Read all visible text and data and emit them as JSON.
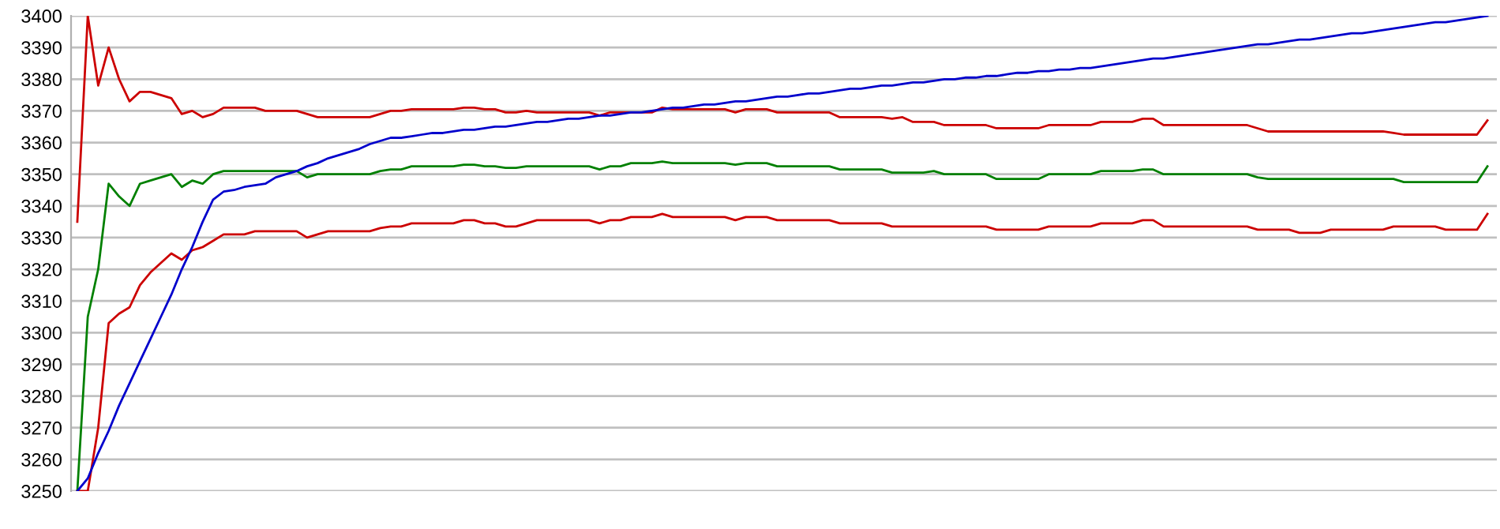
{
  "chart_data": {
    "type": "line",
    "categories": [
      null,
      null,
      null,
      null,
      null,
      null,
      null,
      null,
      null,
      null,
      null,
      null,
      null,
      null,
      null,
      null,
      null,
      null,
      null,
      null,
      null,
      null,
      null,
      null,
      null,
      null,
      null,
      null,
      null,
      null,
      null,
      null,
      null,
      null,
      null,
      null,
      null,
      null,
      null,
      null,
      null,
      null,
      null,
      null,
      null,
      null,
      null,
      null,
      null,
      null,
      null,
      null,
      null,
      null,
      null,
      null,
      null,
      null,
      null,
      null,
      null,
      null,
      null,
      null,
      null,
      null,
      null,
      null,
      null,
      null,
      null,
      null,
      null,
      null,
      null,
      null,
      null,
      null,
      null,
      null,
      null,
      null,
      null,
      null,
      null,
      null,
      null,
      null,
      null,
      null,
      null,
      null,
      null,
      null,
      null,
      null,
      null,
      null,
      null,
      null,
      null,
      null,
      null,
      null,
      null,
      null,
      null,
      null,
      null,
      null,
      null,
      null,
      null,
      null,
      null,
      null,
      null,
      null,
      null,
      null,
      null,
      null,
      null,
      null,
      null,
      null,
      null,
      null,
      null,
      null,
      null,
      null,
      null,
      null,
      null,
      null
    ],
    "series": [
      {
        "color": "#cc0000",
        "values": [
          3335,
          3400,
          3378,
          3390,
          3380,
          3373,
          3376,
          3376,
          3375,
          3374,
          3369,
          3370,
          3368,
          3369,
          3371,
          3371,
          3371,
          3371,
          3370,
          3370,
          3370,
          3370,
          3369,
          3368,
          3368,
          3368,
          3368,
          3368,
          3368,
          3369,
          3370,
          3370,
          3370.5,
          3370.5,
          3370.5,
          3370.5,
          3370.5,
          3371,
          3371,
          3370.5,
          3370.5,
          3369.5,
          3369.5,
          3370,
          3369.5,
          3369.5,
          3369.5,
          3369.5,
          3369.5,
          3369.5,
          3368.5,
          3369.5,
          3369.5,
          3369.5,
          3369.5,
          3369.5,
          3371,
          3370.5,
          3370.5,
          3370.5,
          3370.5,
          3370.5,
          3370.5,
          3369.5,
          3370.5,
          3370.5,
          3370.5,
          3369.5,
          3369.5,
          3369.5,
          3369.5,
          3369.5,
          3369.5,
          3368,
          3368,
          3368,
          3368,
          3368,
          3367.5,
          3368,
          3366.5,
          3366.5,
          3366.5,
          3365.5,
          3365.5,
          3365.5,
          3365.5,
          3365.5,
          3364.5,
          3364.5,
          3364.5,
          3364.5,
          3364.5,
          3365.5,
          3365.5,
          3365.5,
          3365.5,
          3365.5,
          3366.5,
          3366.5,
          3366.5,
          3366.5,
          3367.5,
          3367.5,
          3365.5,
          3365.5,
          3365.5,
          3365.5,
          3365.5,
          3365.5,
          3365.5,
          3365.5,
          3365.5,
          3364.5,
          3363.5,
          3363.5,
          3363.5,
          3363.5,
          3363.5,
          3363.5,
          3363.5,
          3363.5,
          3363.5,
          3363.5,
          3363.5,
          3363.5,
          3363,
          3362.5,
          3362.5,
          3362.5,
          3362.5,
          3362.5,
          3362.5,
          3362.5,
          3362.5,
          3367
        ]
      },
      {
        "color": "#008000",
        "values": [
          3250,
          3305,
          3320,
          3347,
          3343,
          3340,
          3347,
          3348,
          3349,
          3350,
          3346,
          3348,
          3347,
          3350,
          3351,
          3351,
          3351,
          3351,
          3351,
          3351,
          3351,
          3351,
          3349,
          3350,
          3350,
          3350,
          3350,
          3350,
          3350,
          3351,
          3351.5,
          3351.5,
          3352.5,
          3352.5,
          3352.5,
          3352.5,
          3352.5,
          3353,
          3353,
          3352.5,
          3352.5,
          3352,
          3352,
          3352.5,
          3352.5,
          3352.5,
          3352.5,
          3352.5,
          3352.5,
          3352.5,
          3351.5,
          3352.5,
          3352.5,
          3353.5,
          3353.5,
          3353.5,
          3354,
          3353.5,
          3353.5,
          3353.5,
          3353.5,
          3353.5,
          3353.5,
          3353,
          3353.5,
          3353.5,
          3353.5,
          3352.5,
          3352.5,
          3352.5,
          3352.5,
          3352.5,
          3352.5,
          3351.5,
          3351.5,
          3351.5,
          3351.5,
          3351.5,
          3350.5,
          3350.5,
          3350.5,
          3350.5,
          3351,
          3350,
          3350,
          3350,
          3350,
          3350,
          3348.5,
          3348.5,
          3348.5,
          3348.5,
          3348.5,
          3350,
          3350,
          3350,
          3350,
          3350,
          3351,
          3351,
          3351,
          3351,
          3351.5,
          3351.5,
          3350,
          3350,
          3350,
          3350,
          3350,
          3350,
          3350,
          3350,
          3350,
          3349,
          3348.5,
          3348.5,
          3348.5,
          3348.5,
          3348.5,
          3348.5,
          3348.5,
          3348.5,
          3348.5,
          3348.5,
          3348.5,
          3348.5,
          3348.5,
          3347.5,
          3347.5,
          3347.5,
          3347.5,
          3347.5,
          3347.5,
          3347.5,
          3347.5,
          3352.5
        ]
      },
      {
        "color": "#cc0000",
        "values": [
          3250,
          3250,
          3270,
          3303,
          3306,
          3308,
          3315,
          3319,
          3322,
          3325,
          3323,
          3326,
          3327,
          3329,
          3331,
          3331,
          3331,
          3332,
          3332,
          3332,
          3332,
          3332,
          3330,
          3331,
          3332,
          3332,
          3332,
          3332,
          3332,
          3333,
          3333.5,
          3333.5,
          3334.5,
          3334.5,
          3334.5,
          3334.5,
          3334.5,
          3335.5,
          3335.5,
          3334.5,
          3334.5,
          3333.5,
          3333.5,
          3334.5,
          3335.5,
          3335.5,
          3335.5,
          3335.5,
          3335.5,
          3335.5,
          3334.5,
          3335.5,
          3335.5,
          3336.5,
          3336.5,
          3336.5,
          3337.5,
          3336.5,
          3336.5,
          3336.5,
          3336.5,
          3336.5,
          3336.5,
          3335.5,
          3336.5,
          3336.5,
          3336.5,
          3335.5,
          3335.5,
          3335.5,
          3335.5,
          3335.5,
          3335.5,
          3334.5,
          3334.5,
          3334.5,
          3334.5,
          3334.5,
          3333.5,
          3333.5,
          3333.5,
          3333.5,
          3333.5,
          3333.5,
          3333.5,
          3333.5,
          3333.5,
          3333.5,
          3332.5,
          3332.5,
          3332.5,
          3332.5,
          3332.5,
          3333.5,
          3333.5,
          3333.5,
          3333.5,
          3333.5,
          3334.5,
          3334.5,
          3334.5,
          3334.5,
          3335.5,
          3335.5,
          3333.5,
          3333.5,
          3333.5,
          3333.5,
          3333.5,
          3333.5,
          3333.5,
          3333.5,
          3333.5,
          3332.5,
          3332.5,
          3332.5,
          3332.5,
          3331.5,
          3331.5,
          3331.5,
          3332.5,
          3332.5,
          3332.5,
          3332.5,
          3332.5,
          3332.5,
          3333.5,
          3333.5,
          3333.5,
          3333.5,
          3333.5,
          3332.5,
          3332.5,
          3332.5,
          3332.5,
          3337.5
        ]
      },
      {
        "color": "#0000cc",
        "values": [
          3250,
          3254,
          3262,
          3269,
          3277,
          3284,
          3291,
          3298,
          3305,
          3312,
          3320,
          3327,
          3335,
          3342,
          3344.5,
          3345,
          3346,
          3346.5,
          3347,
          3349,
          3350,
          3351,
          3352.5,
          3353.5,
          3355,
          3356,
          3357,
          3358,
          3359.5,
          3360.5,
          3361.5,
          3361.5,
          3362,
          3362.5,
          3363,
          3363,
          3363.5,
          3364,
          3364,
          3364.5,
          3365,
          3365,
          3365.5,
          3366,
          3366.5,
          3366.5,
          3367,
          3367.5,
          3367.5,
          3368,
          3368.5,
          3368.5,
          3369,
          3369.5,
          3369.5,
          3370,
          3370.5,
          3371,
          3371,
          3371.5,
          3372,
          3372,
          3372.5,
          3373,
          3373,
          3373.5,
          3374,
          3374.5,
          3374.5,
          3375,
          3375.5,
          3375.5,
          3376,
          3376.5,
          3377,
          3377,
          3377.5,
          3378,
          3378,
          3378.5,
          3379,
          3379,
          3379.5,
          3380,
          3380,
          3380.5,
          3380.5,
          3381,
          3381,
          3381.5,
          3382,
          3382,
          3382.5,
          3382.5,
          3383,
          3383,
          3383.5,
          3383.5,
          3384,
          3384.5,
          3385,
          3385.5,
          3386,
          3386.5,
          3386.5,
          3387,
          3387.5,
          3388,
          3388.5,
          3389,
          3389.5,
          3390,
          3390.5,
          3391,
          3391,
          3391.5,
          3392,
          3392.5,
          3392.5,
          3393,
          3393.5,
          3394,
          3394.5,
          3394.5,
          3395,
          3395.5,
          3396,
          3396.5,
          3397,
          3397.5,
          3398,
          3398,
          3398.5,
          3399,
          3399.5,
          3400
        ]
      }
    ],
    "ylim": [
      3250,
      3400
    ],
    "yticks": [
      3250,
      3260,
      3270,
      3280,
      3290,
      3300,
      3310,
      3320,
      3330,
      3340,
      3350,
      3360,
      3370,
      3380,
      3390,
      3400
    ],
    "grid": "y",
    "tick_labels": "y",
    "marker": "none",
    "line_style": "solid"
  }
}
